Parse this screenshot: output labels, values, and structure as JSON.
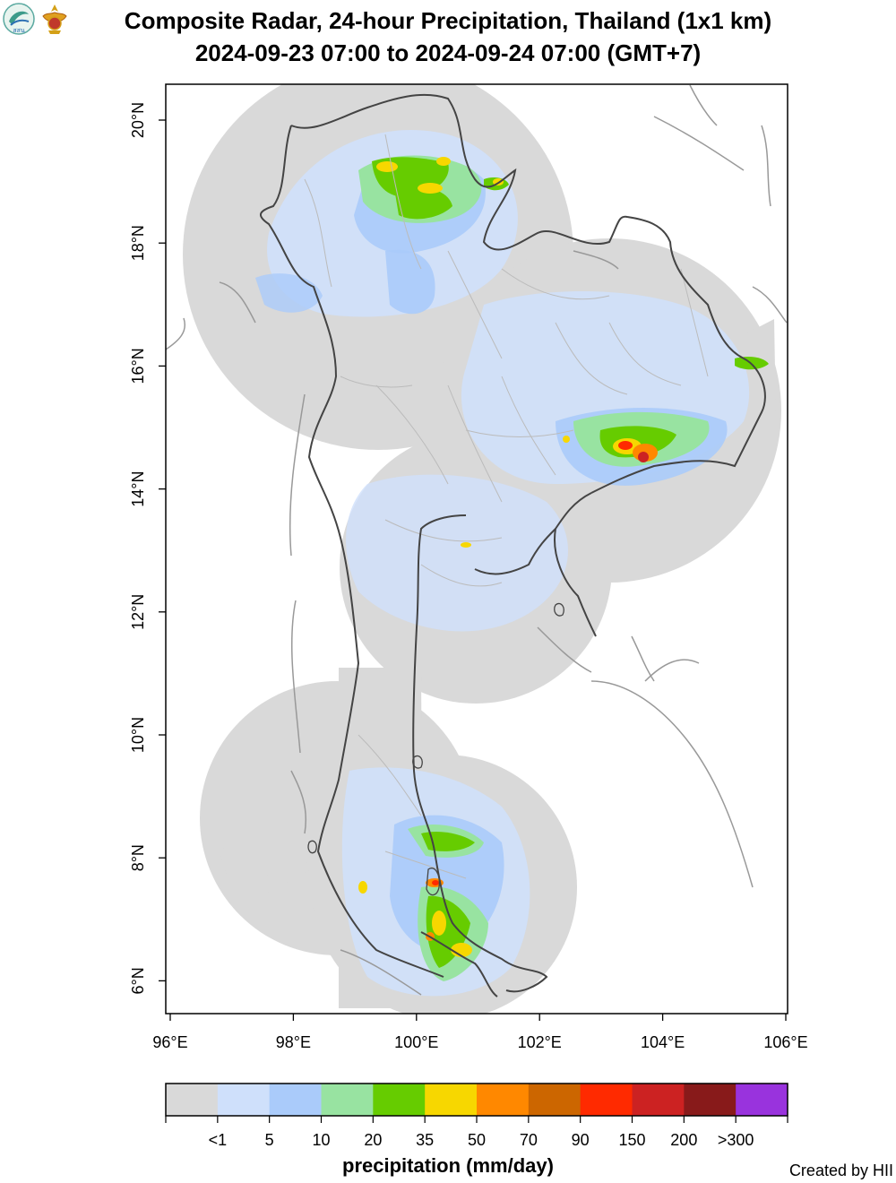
{
  "header": {
    "title_line1": "Composite Radar, 24-hour Precipitation, Thailand (1x1 km)",
    "title_line2": "2024-09-23 07:00 to 2024-09-24 07:00 (GMT+7)",
    "logo_left_text": "สสน"
  },
  "map": {
    "x_ticks": [
      "96°E",
      "98°E",
      "100°E",
      "102°E",
      "104°E",
      "106°E"
    ],
    "y_ticks": [
      "20°N",
      "18°N",
      "16°N",
      "14°N",
      "12°N",
      "10°N",
      "8°N",
      "6°N"
    ]
  },
  "legend": {
    "title": "precipitation (mm/day)",
    "labels": [
      "<1",
      "5",
      "10",
      "20",
      "35",
      "50",
      "70",
      "90",
      "150",
      "200",
      ">300"
    ],
    "colors": [
      "#d9d9d9",
      "#cfe0fb",
      "#aacbfa",
      "#98e3a1",
      "#66cc00",
      "#f7d700",
      "#ff8800",
      "#cc6600",
      "#ff2a00",
      "#cc2222",
      "#881a1a",
      "#9933dd"
    ]
  },
  "footer": {
    "credit": "Created by HII"
  }
}
